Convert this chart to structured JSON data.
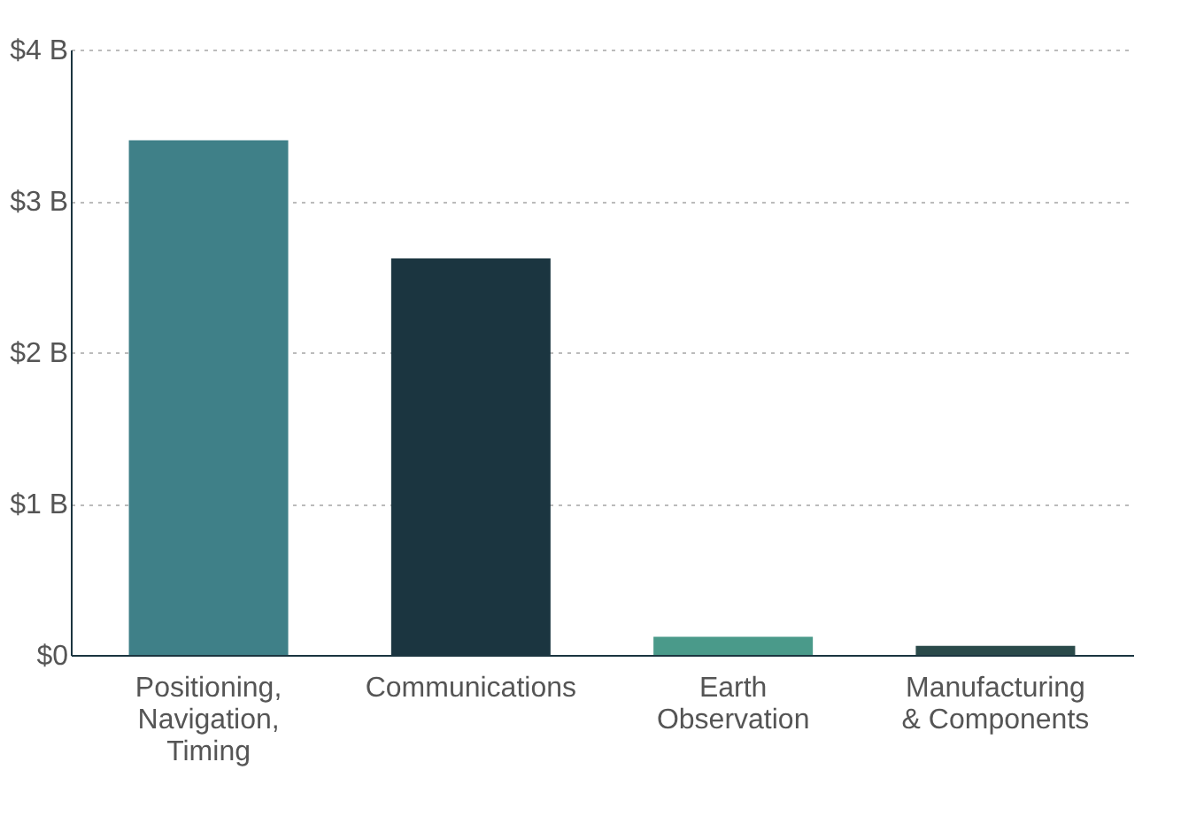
{
  "chart_data": {
    "type": "bar",
    "categories": [
      "Positioning, Navigation, Timing",
      "Communications",
      "Earth Observation",
      "Manufacturing & Components"
    ],
    "values": [
      3.4,
      2.62,
      0.12,
      0.06
    ],
    "colors": [
      "#3f8088",
      "#1b3540",
      "#4a9a8a",
      "#2a4a4a"
    ],
    "ylim": [
      0,
      4
    ],
    "yticks": [
      {
        "value": 0,
        "label": "$0"
      },
      {
        "value": 1,
        "label": "$1 B"
      },
      {
        "value": 2,
        "label": "$2 B"
      },
      {
        "value": 3,
        "label": "$3 B"
      },
      {
        "value": 4,
        "label": "$4 B"
      }
    ],
    "grid": "y"
  }
}
